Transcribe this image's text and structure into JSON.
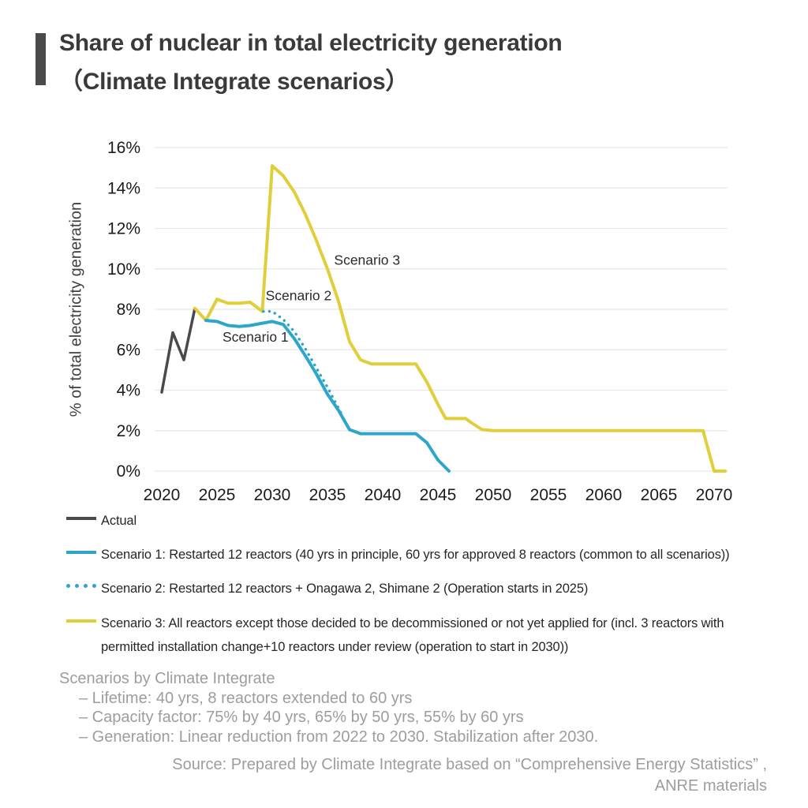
{
  "header": {
    "title_line1": "Share of nuclear in total electricity generation",
    "title_line2": "（Climate Integrate scenarios）",
    "accent_bar_color": "#4a4a4a"
  },
  "chart_data": {
    "type": "line",
    "title": "Share of nuclear in total electricity generation (Climate Integrate scenarios)",
    "ylabel": "% of total electricity generation",
    "xlabel": "",
    "xlim": [
      2019.5,
      2071.5
    ],
    "ylim": [
      0,
      16
    ],
    "grid": true,
    "grid_color": "#e7e7e7",
    "tick_color": "#1b1b1b",
    "annotation_color": "#2b2b2b",
    "x_ticks": [
      2020,
      2025,
      2030,
      2035,
      2040,
      2045,
      2050,
      2055,
      2060,
      2065,
      2070
    ],
    "y_ticks": [
      {
        "v": 0,
        "label": "0%"
      },
      {
        "v": 2,
        "label": "2%"
      },
      {
        "v": 4,
        "label": "4%"
      },
      {
        "v": 6,
        "label": "6%"
      },
      {
        "v": 8,
        "label": "8%"
      },
      {
        "v": 10,
        "label": "10%"
      },
      {
        "v": 12,
        "label": "12%"
      },
      {
        "v": 14,
        "label": "14%"
      },
      {
        "v": 16,
        "label": "16%"
      }
    ],
    "annotations": [
      {
        "text": "Scenario 3",
        "x": 2035.6,
        "y": 10.2
      },
      {
        "text": "Scenario 2",
        "x": 2029.4,
        "y": 8.45
      },
      {
        "text": "Scenario 1",
        "x": 2025.5,
        "y": 6.4
      }
    ],
    "series": [
      {
        "name": "Actual",
        "color": "#4a4a4a",
        "style": "solid",
        "width": 3.5,
        "points": [
          [
            2020,
            3.9
          ],
          [
            2021,
            6.85
          ],
          [
            2022,
            5.5
          ],
          [
            2023,
            8.05
          ]
        ]
      },
      {
        "name": "Scenario 3",
        "color": "#e1ce3b",
        "style": "solid",
        "width": 4,
        "points": [
          [
            2023,
            8.05
          ],
          [
            2024,
            7.45
          ],
          [
            2025,
            8.5
          ],
          [
            2026,
            8.3
          ],
          [
            2027,
            8.3
          ],
          [
            2028,
            8.35
          ],
          [
            2029.1,
            7.9
          ],
          [
            2030,
            15.1
          ],
          [
            2031,
            14.6
          ],
          [
            2032,
            13.8
          ],
          [
            2033,
            12.7
          ],
          [
            2034,
            11.4
          ],
          [
            2035,
            10.0
          ],
          [
            2036,
            8.4
          ],
          [
            2037,
            6.4
          ],
          [
            2038,
            5.5
          ],
          [
            2039,
            5.3
          ],
          [
            2043,
            5.3
          ],
          [
            2044,
            4.4
          ],
          [
            2045,
            3.3
          ],
          [
            2045.7,
            2.6
          ],
          [
            2047.5,
            2.6
          ],
          [
            2048,
            2.4
          ],
          [
            2049,
            2.05
          ],
          [
            2050,
            2.0
          ],
          [
            2069,
            2.0
          ],
          [
            2070,
            0
          ],
          [
            2071,
            0
          ]
        ]
      },
      {
        "name": "Scenario 2",
        "color": "#2ea6c9",
        "style": "dotted",
        "width": 3.5,
        "points": [
          [
            2029.2,
            7.9
          ],
          [
            2030,
            7.9
          ],
          [
            2031,
            7.5
          ],
          [
            2032,
            6.9
          ],
          [
            2033,
            6.05
          ],
          [
            2034,
            5.1
          ],
          [
            2035,
            4.15
          ],
          [
            2036.2,
            2.9
          ]
        ]
      },
      {
        "name": "Scenario 1",
        "color": "#2ea6c9",
        "style": "solid",
        "width": 4,
        "points": [
          [
            2024,
            7.45
          ],
          [
            2025,
            7.4
          ],
          [
            2026,
            7.2
          ],
          [
            2027,
            7.15
          ],
          [
            2028,
            7.2
          ],
          [
            2029,
            7.3
          ],
          [
            2030,
            7.4
          ],
          [
            2031,
            7.25
          ],
          [
            2032,
            6.55
          ],
          [
            2033,
            5.7
          ],
          [
            2034,
            4.8
          ],
          [
            2035,
            3.8
          ],
          [
            2036,
            3.0
          ],
          [
            2037,
            2.05
          ],
          [
            2038,
            1.85
          ],
          [
            2043,
            1.85
          ],
          [
            2044,
            1.4
          ],
          [
            2045,
            0.55
          ],
          [
            2046,
            0
          ]
        ]
      }
    ]
  },
  "legend": {
    "items": [
      {
        "label": "Actual",
        "style": "solid",
        "color": "#4a4a4a"
      },
      {
        "label": "Scenario 1: Restarted 12 reactors (40 yrs in principle, 60 yrs for approved 8 reactors (common to all scenarios))",
        "style": "solid",
        "color": "#2ea6c9"
      },
      {
        "label": "Scenario 2: Restarted 12 reactors + Onagawa 2, Shimane 2 (Operation starts in 2025)",
        "style": "dotted",
        "color": "#2ea6c9"
      },
      {
        "label": "Scenario 3: All reactors except those decided to be decommissioned or not yet applied for (incl. 3 reactors with permitted installation change+10 reactors under review (operation to start in 2030))",
        "style": "solid",
        "color": "#e1ce3b"
      }
    ]
  },
  "footnotes": {
    "heading": "Scenarios by Climate Integrate",
    "items": [
      "– Lifetime: 40 yrs, 8 reactors extended to 60 yrs",
      "– Capacity factor: 75% by 40 yrs, 65% by 50 yrs, 55% by 60 yrs",
      "– Generation: Linear reduction from 2022 to 2030. Stabilization after 2030."
    ],
    "source_line1": "Source: Prepared by Climate Integrate based on “Comprehensive Energy Statistics” ,",
    "source_line2": "ANRE materials"
  }
}
